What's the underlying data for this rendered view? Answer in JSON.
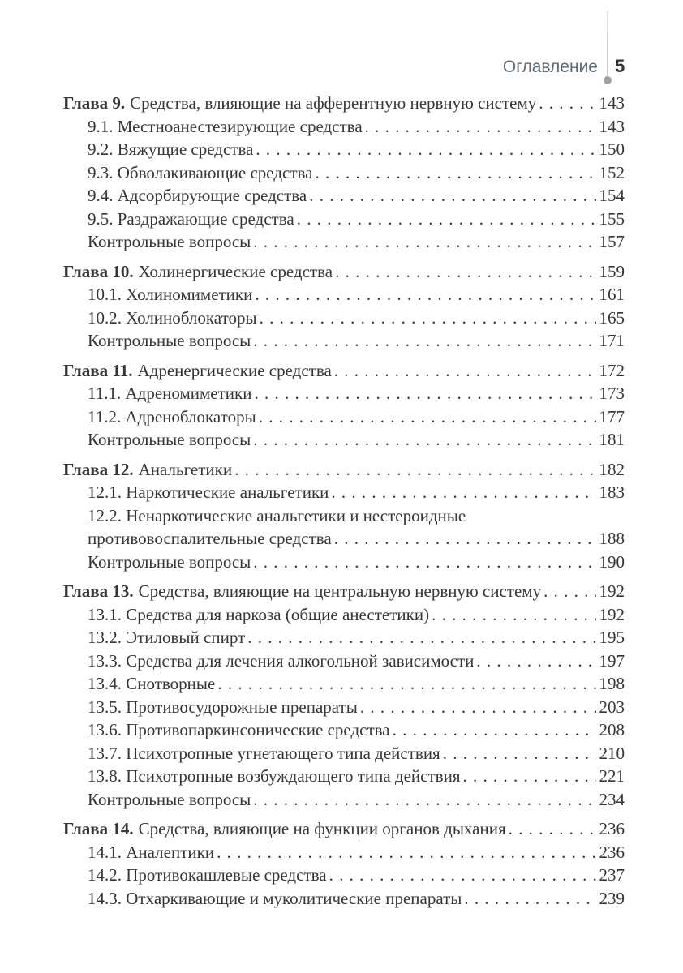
{
  "header": {
    "title": "Оглавление",
    "page_number": "5"
  },
  "colors": {
    "page_bg": "#ffffff",
    "body_text": "#33363b",
    "header_text": "#5e6a74",
    "page_number_text": "#2f343c",
    "divider_line": "#c5cacf",
    "divider_dot": "#9ba2a9"
  },
  "toc": {
    "entries": [
      {
        "kind": "chapter",
        "label": "Глава 9.",
        "text": "Средства, влияющие на афферентную нервную систему",
        "page": "143"
      },
      {
        "kind": "section",
        "text": "9.1. Местноанестезирующие средства",
        "page": "143"
      },
      {
        "kind": "section",
        "text": "9.2. Вяжущие средства",
        "page": "150"
      },
      {
        "kind": "section",
        "text": "9.3. Обволакивающие средства",
        "page": "152"
      },
      {
        "kind": "section",
        "text": "9.4. Адсорбирующие средства",
        "page": "154"
      },
      {
        "kind": "section",
        "text": "9.5. Раздражающие средства",
        "page": "155"
      },
      {
        "kind": "section",
        "text": "Контрольные вопросы",
        "page": "157"
      },
      {
        "kind": "chapter",
        "label": "Глава 10.",
        "text": "Холинергические средства",
        "page": "159"
      },
      {
        "kind": "section",
        "text": "10.1. Холиномиметики",
        "page": "161"
      },
      {
        "kind": "section",
        "text": "10.2. Холиноблокаторы",
        "page": "165"
      },
      {
        "kind": "section",
        "text": "Контрольные вопросы",
        "page": "171"
      },
      {
        "kind": "chapter",
        "label": "Глава 11.",
        "text": "Адренергические средства",
        "page": "172"
      },
      {
        "kind": "section",
        "text": "11.1. Адреномиметики",
        "page": "173"
      },
      {
        "kind": "section",
        "text": "11.2. Адреноблокаторы",
        "page": "177"
      },
      {
        "kind": "section",
        "text": "Контрольные вопросы",
        "page": "181"
      },
      {
        "kind": "chapter",
        "label": "Глава 12.",
        "text": "Анальгетики",
        "page": "182"
      },
      {
        "kind": "section",
        "text": "12.1. Наркотические анальгетики",
        "page": "183"
      },
      {
        "kind": "section",
        "text": "12.2. Ненаркотические анальгетики и нестероидные",
        "text2": "противовоспалительные средства",
        "page": "188"
      },
      {
        "kind": "section",
        "text": "Контрольные вопросы",
        "page": "190"
      },
      {
        "kind": "chapter",
        "label": "Глава 13.",
        "text": "Средства, влияющие на центральную нервную систему",
        "page": "192"
      },
      {
        "kind": "section",
        "text": "13.1. Средства для наркоза (общие анестетики)",
        "page": "192"
      },
      {
        "kind": "section",
        "text": "13.2. Этиловый спирт",
        "page": "195"
      },
      {
        "kind": "section",
        "text": "13.3. Средства для лечения алкогольной зависимости",
        "page": "197"
      },
      {
        "kind": "section",
        "text": "13.4. Снотворные",
        "page": "198"
      },
      {
        "kind": "section",
        "text": "13.5. Противосудорожные препараты",
        "page": "203"
      },
      {
        "kind": "section",
        "text": "13.6. Противопаркинсонические средства",
        "page": "208"
      },
      {
        "kind": "section",
        "text": "13.7. Психотропные угнетающего типа действия",
        "page": "210"
      },
      {
        "kind": "section",
        "text": "13.8. Психотропные возбуждающего типа действия",
        "page": "221"
      },
      {
        "kind": "section",
        "text": "Контрольные вопросы",
        "page": "234"
      },
      {
        "kind": "chapter",
        "label": "Глава 14.",
        "text": "Средства, влияющие на функции органов дыхания",
        "page": "236"
      },
      {
        "kind": "section",
        "text": "14.1. Аналептики",
        "page": "236"
      },
      {
        "kind": "section",
        "text": "14.2. Противокашлевые средства",
        "page": "237"
      },
      {
        "kind": "section",
        "text": "14.3. Отхаркивающие и муколитические препараты",
        "page": "239"
      }
    ]
  }
}
